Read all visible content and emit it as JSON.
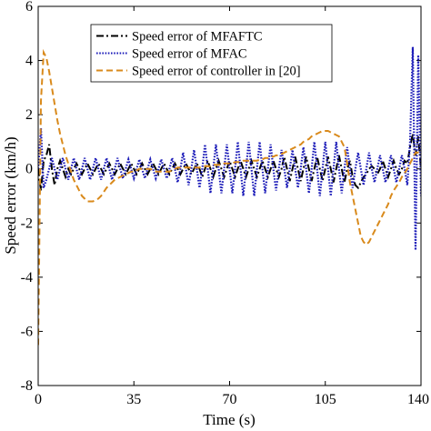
{
  "chart_data": {
    "type": "line",
    "xlabel": "Time (s)",
    "ylabel": "Speed error (km/h)",
    "xlim": [
      0,
      140
    ],
    "xticks": [
      0,
      35,
      70,
      105,
      140
    ],
    "ylim": [
      -8,
      6
    ],
    "yticks": [
      -8,
      -6,
      -4,
      -2,
      0,
      2,
      4,
      6
    ],
    "grid": false,
    "legend": "upper center",
    "x": [
      0,
      1,
      2,
      3,
      4,
      5,
      6,
      7,
      8,
      9,
      10,
      11,
      12,
      13,
      14,
      15,
      16,
      17,
      18,
      19,
      20,
      21,
      22,
      23,
      24,
      25,
      26,
      27,
      28,
      29,
      30,
      31,
      32,
      33,
      34,
      35,
      36,
      37,
      38,
      39,
      40,
      41,
      42,
      43,
      44,
      45,
      46,
      47,
      48,
      49,
      50,
      51,
      52,
      53,
      54,
      55,
      56,
      57,
      58,
      59,
      60,
      61,
      62,
      63,
      64,
      65,
      66,
      67,
      68,
      69,
      70,
      71,
      72,
      73,
      74,
      75,
      76,
      77,
      78,
      79,
      80,
      81,
      82,
      83,
      84,
      85,
      86,
      87,
      88,
      89,
      90,
      91,
      92,
      93,
      94,
      95,
      96,
      97,
      98,
      99,
      100,
      101,
      102,
      103,
      104,
      105,
      106,
      107,
      108,
      109,
      110,
      111,
      112,
      113,
      114,
      115,
      116,
      117,
      118,
      119,
      120,
      121,
      122,
      123,
      124,
      125,
      126,
      127,
      128,
      129,
      130,
      131,
      132,
      133,
      134,
      135,
      136,
      137,
      138,
      139,
      140
    ],
    "series": [
      {
        "name": "Speed error of MFAFTC",
        "color": "#000000",
        "dash": "dashdot",
        "values": [
          0,
          -0.8,
          0.3,
          0.5,
          0.9,
          0,
          -0.6,
          0,
          0.3,
          0,
          -0.3,
          0,
          -0.2,
          0,
          0.2,
          0,
          -0.2,
          0,
          0.2,
          0,
          -0.2,
          0,
          0.2,
          0,
          -0.2,
          0,
          0.2,
          0,
          -0.2,
          0,
          0.2,
          0,
          -0.2,
          0,
          0.2,
          0,
          -0.2,
          0,
          0.2,
          0,
          -0.2,
          0,
          0.2,
          0,
          -0.2,
          0,
          0.2,
          0,
          -0.2,
          0,
          0.2,
          0,
          -0.2,
          0,
          0.2,
          0,
          -0.2,
          0,
          0.2,
          0,
          -0.3,
          0,
          0.3,
          0,
          -0.3,
          0,
          0.3,
          0,
          -0.3,
          0,
          0.3,
          0,
          -0.3,
          0,
          0.3,
          0,
          -0.3,
          0,
          0.3,
          0,
          -0.3,
          0,
          0.3,
          0,
          -0.3,
          0,
          0.3,
          0,
          -0.3,
          0,
          0.45,
          0,
          -0.45,
          0,
          0.45,
          0,
          -0.45,
          0,
          0.45,
          0,
          -0.45,
          0,
          0.45,
          0,
          -0.45,
          0,
          0.45,
          0,
          -0.5,
          0,
          0.5,
          0,
          -0.5,
          0,
          0.3,
          -0.3,
          -0.6,
          -0.7,
          -0.5,
          -0.3,
          -0.2,
          0,
          0.1,
          0,
          -0.2,
          0,
          0.3,
          0,
          -0.3,
          0,
          0.3,
          0,
          -0.2,
          0,
          0.3,
          0.2,
          0.8,
          1.3,
          0.5,
          1.2,
          0
        ]
      },
      {
        "name": "Speed error of MFAC",
        "color": "#1a1ab8",
        "dash": "dotted",
        "values": [
          0,
          1.5,
          -0.7,
          -0.4,
          0,
          0.4,
          0,
          -0.4,
          0,
          0.4,
          0,
          -0.4,
          0,
          0.4,
          0,
          -0.4,
          0,
          0.4,
          0,
          -0.4,
          0,
          0.4,
          0,
          -0.4,
          0,
          0.4,
          0,
          -0.4,
          0,
          0.4,
          0,
          -0.35,
          0,
          0.35,
          0,
          -0.35,
          0,
          0.35,
          0,
          -0.35,
          0,
          0.35,
          0,
          -0.35,
          0,
          0.35,
          0,
          -0.35,
          0,
          0.4,
          0,
          -0.5,
          0,
          0.6,
          0,
          -0.6,
          0,
          0.7,
          0,
          -0.7,
          0,
          0.9,
          0,
          -0.9,
          0,
          0.9,
          0,
          -0.9,
          0,
          0.9,
          0,
          -0.9,
          0,
          1.0,
          0,
          -1.0,
          0,
          1.0,
          0,
          -1.0,
          0,
          1.0,
          0,
          -0.9,
          0,
          0.9,
          0,
          -0.8,
          0,
          0.7,
          0,
          -0.7,
          0,
          0.7,
          0,
          -0.7,
          0,
          0.8,
          0,
          -0.9,
          0,
          1.0,
          0,
          -1.0,
          0,
          1.0,
          0,
          -1.0,
          0,
          1.0,
          0,
          -0.9,
          0,
          0.8,
          0,
          -0.7,
          0,
          0.6,
          0,
          -0.6,
          0,
          0.6,
          0,
          -0.5,
          0,
          0.5,
          0,
          -0.5,
          0,
          0.5,
          0,
          -0.5,
          0,
          0.5,
          0,
          -0.6,
          1.0,
          4.5,
          -3.0,
          4.2,
          -1.0
        ]
      },
      {
        "name": "Speed error of controller in [20]",
        "color": "#d98a1c",
        "dash": "dashed",
        "values": [
          -6.5,
          2.5,
          4.3,
          4.1,
          3.6,
          3.0,
          2.4,
          1.8,
          1.3,
          0.9,
          0.5,
          0.2,
          -0.1,
          -0.4,
          -0.6,
          -0.8,
          -1.0,
          -1.1,
          -1.2,
          -1.2,
          -1.2,
          -1.15,
          -1.1,
          -1.0,
          -0.85,
          -0.7,
          -0.6,
          -0.5,
          -0.4,
          -0.35,
          -0.3,
          -0.25,
          -0.2,
          -0.15,
          -0.1,
          -0.1,
          -0.05,
          0,
          0,
          0,
          0,
          0,
          -0.05,
          -0.1,
          -0.1,
          -0.1,
          -0.1,
          -0.1,
          -0.1,
          -0.05,
          0,
          0.05,
          0.05,
          0.05,
          0.05,
          0.05,
          0.05,
          0.05,
          0.05,
          0.05,
          0.1,
          0.1,
          0.1,
          0.1,
          0.15,
          0.15,
          0.15,
          0.15,
          0.2,
          0.2,
          0.2,
          0.2,
          0.25,
          0.25,
          0.25,
          0.3,
          0.3,
          0.3,
          0.3,
          0.3,
          0.3,
          0.35,
          0.35,
          0.4,
          0.4,
          0.45,
          0.45,
          0.5,
          0.5,
          0.55,
          0.6,
          0.65,
          0.7,
          0.75,
          0.8,
          0.85,
          0.9,
          1.0,
          1.05,
          1.1,
          1.2,
          1.25,
          1.3,
          1.35,
          1.4,
          1.4,
          1.4,
          1.35,
          1.3,
          1.25,
          1.2,
          1.0,
          0.8,
          0.2,
          -0.5,
          -1.0,
          -1.5,
          -2.0,
          -2.5,
          -2.7,
          -2.8,
          -2.7,
          -2.5,
          -2.3,
          -2.1,
          -1.9,
          -1.7,
          -1.5,
          -1.3,
          -1.0,
          -0.8,
          -0.65,
          -0.5,
          -0.3,
          -0.15,
          0,
          0.2,
          0.4,
          0.6,
          0.6,
          0.5
        ]
      }
    ]
  }
}
